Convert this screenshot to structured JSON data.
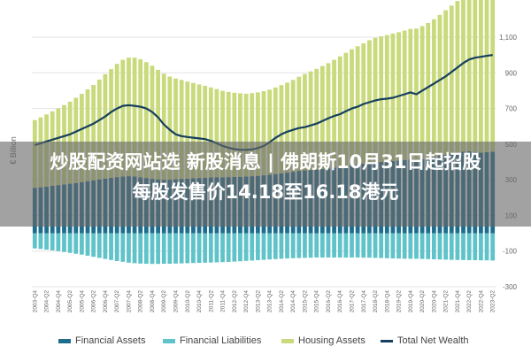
{
  "headline": {
    "line1": "炒股配资网站选 新股消息 | 佛朗斯10月31日起招股",
    "line2": "每股发售价14.18至16.18港元"
  },
  "colors": {
    "financial_assets": "#1e6d8c",
    "financial_liabilities": "#5fc3c9",
    "housing_assets": "#c8da7b",
    "total_net_wealth": "#173f5f",
    "grid": "#e3e3e3",
    "banner": "#696969"
  },
  "chart_data": {
    "type": "bar",
    "ylabel": "€ Billion",
    "ylim": [
      -300,
      1100
    ],
    "yticks": [
      -300,
      -100,
      100,
      300,
      500,
      700,
      900,
      1100
    ],
    "ytick_labels": [
      "-300",
      "-100",
      "100",
      "300",
      "500",
      "700",
      "900",
      "1,100"
    ],
    "grid": true,
    "legend_position": "bottom",
    "x_tick_labels": [
      "2003-Q4",
      "2004-Q2",
      "2004-Q4",
      "2005-Q2",
      "2005-Q4",
      "2006-Q2",
      "2006-Q4",
      "2007-Q2",
      "2007-Q4",
      "2008-Q2",
      "2008-Q4",
      "2009-Q2",
      "2009-Q4",
      "2010-Q2",
      "2010-Q4",
      "2011-Q2",
      "2011-Q4",
      "2012-Q2",
      "2012-Q4",
      "2013-Q2",
      "2013-Q4",
      "2014-Q2",
      "2014-Q4",
      "2015-Q2",
      "2015-Q4",
      "2016-Q2",
      "2016-Q4",
      "2017-Q2",
      "2017-Q4",
      "2018-Q2",
      "2018-Q4",
      "2019-Q2",
      "2019-Q4",
      "2020-Q2",
      "2020-Q4",
      "2021-Q2",
      "2021-Q4",
      "2022-Q2",
      "2022-Q4",
      "2023-Q2"
    ],
    "categories": [
      "2003-Q4",
      "2004-Q1",
      "2004-Q2",
      "2004-Q3",
      "2004-Q4",
      "2005-Q1",
      "2005-Q2",
      "2005-Q3",
      "2005-Q4",
      "2006-Q1",
      "2006-Q2",
      "2006-Q3",
      "2006-Q4",
      "2007-Q1",
      "2007-Q2",
      "2007-Q3",
      "2007-Q4",
      "2008-Q1",
      "2008-Q2",
      "2008-Q3",
      "2008-Q4",
      "2009-Q1",
      "2009-Q2",
      "2009-Q3",
      "2009-Q4",
      "2010-Q1",
      "2010-Q2",
      "2010-Q3",
      "2010-Q4",
      "2011-Q1",
      "2011-Q2",
      "2011-Q3",
      "2011-Q4",
      "2012-Q1",
      "2012-Q2",
      "2012-Q3",
      "2012-Q4",
      "2013-Q1",
      "2013-Q2",
      "2013-Q3",
      "2013-Q4",
      "2014-Q1",
      "2014-Q2",
      "2014-Q3",
      "2014-Q4",
      "2015-Q1",
      "2015-Q2",
      "2015-Q3",
      "2015-Q4",
      "2016-Q1",
      "2016-Q2",
      "2016-Q3",
      "2016-Q4",
      "2017-Q1",
      "2017-Q2",
      "2017-Q3",
      "2017-Q4",
      "2018-Q1",
      "2018-Q2",
      "2018-Q3",
      "2018-Q4",
      "2019-Q1",
      "2019-Q2",
      "2019-Q3",
      "2019-Q4",
      "2020-Q1",
      "2020-Q2",
      "2020-Q3",
      "2020-Q4",
      "2021-Q1",
      "2021-Q2",
      "2021-Q3",
      "2021-Q4",
      "2022-Q1",
      "2022-Q2",
      "2022-Q3",
      "2022-Q4",
      "2023-Q1",
      "2023-Q2"
    ],
    "series": [
      {
        "name": "Financial Assets",
        "kind": "bar",
        "values": [
          255,
          258,
          262,
          266,
          270,
          274,
          278,
          282,
          287,
          292,
          297,
          302,
          307,
          311,
          315,
          318,
          320,
          318,
          314,
          310,
          305,
          302,
          300,
          301,
          303,
          305,
          306,
          308,
          310,
          312,
          313,
          314,
          314,
          315,
          316,
          317,
          318,
          320,
          322,
          325,
          328,
          332,
          336,
          340,
          345,
          350,
          353,
          355,
          357,
          360,
          364,
          368,
          372,
          377,
          382,
          386,
          390,
          395,
          398,
          400,
          402,
          405,
          408,
          411,
          414,
          410,
          416,
          422,
          428,
          435,
          441,
          447,
          453,
          458,
          460,
          456,
          452,
          455,
          458
        ]
      },
      {
        "name": "Financial Liabilities",
        "kind": "bar",
        "values": [
          -85,
          -88,
          -92,
          -96,
          -100,
          -105,
          -110,
          -115,
          -120,
          -126,
          -132,
          -138,
          -144,
          -150,
          -156,
          -160,
          -165,
          -168,
          -170,
          -171,
          -172,
          -172,
          -171,
          -171,
          -170,
          -169,
          -168,
          -167,
          -166,
          -165,
          -164,
          -163,
          -162,
          -161,
          -159,
          -157,
          -155,
          -153,
          -151,
          -149,
          -147,
          -145,
          -143,
          -141,
          -140,
          -139,
          -138,
          -137,
          -136,
          -136,
          -136,
          -136,
          -136,
          -136,
          -136,
          -136,
          -137,
          -137,
          -138,
          -139,
          -140,
          -141,
          -142,
          -143,
          -143,
          -143,
          -144,
          -145,
          -146,
          -147,
          -148,
          -149,
          -150,
          -150,
          -151,
          -151,
          -152,
          -152,
          -153
        ]
      },
      {
        "name": "Housing Assets",
        "kind": "bar",
        "values": [
          380,
          392,
          405,
          418,
          430,
          445,
          460,
          478,
          495,
          515,
          535,
          560,
          585,
          610,
          635,
          655,
          665,
          667,
          662,
          650,
          635,
          615,
          595,
          578,
          565,
          555,
          545,
          535,
          525,
          515,
          505,
          495,
          485,
          478,
          472,
          468,
          465,
          466,
          468,
          472,
          478,
          486,
          495,
          505,
          515,
          528,
          540,
          553,
          565,
          578,
          590,
          605,
          620,
          635,
          650,
          663,
          675,
          688,
          698,
          705,
          710,
          715,
          720,
          726,
          732,
          738,
          746,
          758,
          772,
          790,
          810,
          830,
          850,
          870,
          885,
          895,
          900,
          902,
          903
        ]
      },
      {
        "name": "Total Net Wealth",
        "kind": "line",
        "values": [
          495,
          505,
          515,
          525,
          535,
          545,
          555,
          570,
          585,
          600,
          615,
          635,
          655,
          680,
          700,
          715,
          718,
          715,
          710,
          700,
          680,
          650,
          610,
          580,
          555,
          545,
          540,
          536,
          532,
          528,
          518,
          505,
          490,
          480,
          472,
          468,
          468,
          470,
          478,
          490,
          510,
          535,
          555,
          570,
          580,
          590,
          595,
          605,
          615,
          630,
          645,
          658,
          668,
          685,
          700,
          710,
          725,
          735,
          745,
          752,
          755,
          760,
          770,
          780,
          790,
          780,
          800,
          820,
          840,
          860,
          880,
          905,
          930,
          955,
          975,
          985,
          990,
          995,
          1000
        ]
      }
    ]
  },
  "legend": [
    {
      "label": "Financial Assets",
      "color": "#1e6d8c"
    },
    {
      "label": "Financial Liabilities",
      "color": "#5fc3c9"
    },
    {
      "label": "Housing Assets",
      "color": "#c8da7b"
    },
    {
      "label": "Total Net Wealth",
      "color": "#173f5f"
    }
  ]
}
